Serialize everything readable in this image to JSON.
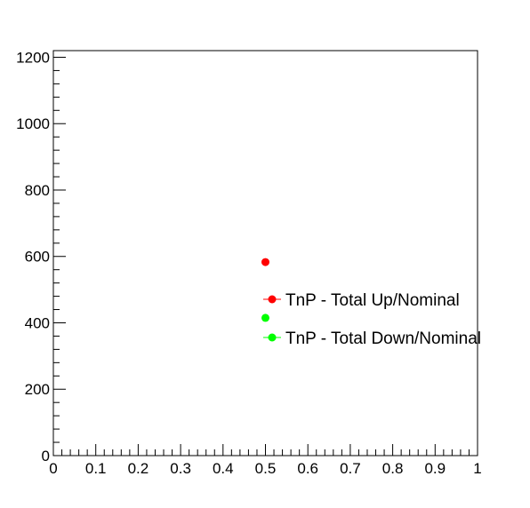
{
  "chart_data": {
    "type": "scatter",
    "title": "",
    "xlabel": "",
    "ylabel": "",
    "xlim": [
      0,
      1
    ],
    "ylim": [
      0,
      1220
    ],
    "x_ticks": [
      0,
      0.1,
      0.2,
      0.3,
      0.4,
      0.5,
      0.6,
      0.7,
      0.8,
      0.9,
      1
    ],
    "x_tick_labels": [
      "0",
      "0.1",
      "0.2",
      "0.3",
      "0.4",
      "0.5",
      "0.6",
      "0.7",
      "0.8",
      "0.9",
      "1"
    ],
    "y_ticks": [
      0,
      200,
      400,
      600,
      800,
      1000,
      1200
    ],
    "y_tick_labels": [
      "0",
      "200",
      "400",
      "600",
      "800",
      "1000",
      "1200"
    ],
    "grid": false,
    "legend_position": "center-right",
    "series": [
      {
        "name": "TnP - Total Up/Nominal",
        "color": "#ff0000",
        "points": [
          {
            "x": 0.5,
            "y": 583
          }
        ]
      },
      {
        "name": "TnP - Total Down/Nominal",
        "color": "#00ff00",
        "points": [
          {
            "x": 0.5,
            "y": 415
          }
        ]
      }
    ]
  }
}
